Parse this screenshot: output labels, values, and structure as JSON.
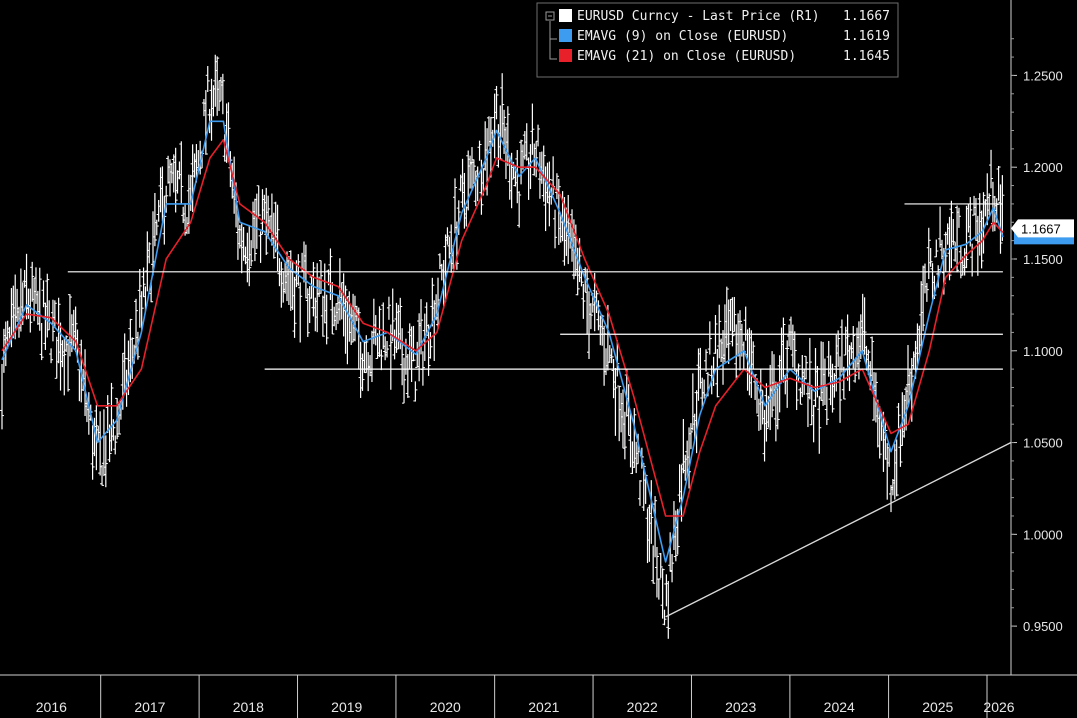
{
  "chart_data": {
    "type": "line",
    "title": "",
    "xlabel": "",
    "ylabel": "",
    "y_axis_side": "right",
    "ylim": [
      0.925,
      1.29
    ],
    "yticks": [
      0.95,
      1.0,
      1.05,
      1.1,
      1.15,
      1.2,
      1.25
    ],
    "ytick_labels": [
      "0.9500",
      "1.0000",
      "1.0500",
      "1.1000",
      "1.1500",
      "1.2000",
      "1.2500"
    ],
    "xlim": [
      "2016-01-01",
      "2026-03-31"
    ],
    "x_year_labels": [
      "2016",
      "2017",
      "2018",
      "2019",
      "2020",
      "2021",
      "2022",
      "2023",
      "2024",
      "2025",
      "2026"
    ],
    "legend": {
      "placement": "top-center",
      "items": [
        {
          "text": "EURUSD Curncy - Last Price (R1)",
          "value": "1.1667",
          "color": "#ffffff"
        },
        {
          "text": "EMAVG (9)  on Close (EURUSD)",
          "value": "1.1619",
          "color": "#3d9cf0"
        },
        {
          "text": "EMAVG (21)  on Close (EURUSD)",
          "value": "1.1645",
          "color": "#e8202a"
        }
      ]
    },
    "last_price_label": "1.1667",
    "series": [
      {
        "name": "EURUSD Curncy - Last Price (R1)",
        "style": "bars",
        "color": "#ffffff",
        "x": [
          "2016-01-01",
          "2016-04-01",
          "2016-07-01",
          "2016-10-01",
          "2016-12-20",
          "2017-03-01",
          "2017-06-01",
          "2017-09-01",
          "2017-12-01",
          "2018-02-10",
          "2018-04-01",
          "2018-06-01",
          "2018-09-01",
          "2018-12-01",
          "2019-03-01",
          "2019-06-01",
          "2019-09-01",
          "2019-12-01",
          "2020-03-15",
          "2020-06-01",
          "2020-09-01",
          "2020-12-01",
          "2021-01-08",
          "2021-04-01",
          "2021-06-01",
          "2021-09-01",
          "2021-12-01",
          "2022-03-01",
          "2022-06-01",
          "2022-09-27",
          "2022-12-01",
          "2023-02-01",
          "2023-04-01",
          "2023-07-15",
          "2023-10-01",
          "2024-01-01",
          "2024-04-01",
          "2024-07-01",
          "2024-09-25",
          "2025-01-10",
          "2025-03-15",
          "2025-06-01",
          "2025-08-01",
          "2025-10-15",
          "2025-12-15",
          "2026-01-25",
          "2026-03-01"
        ],
        "y": [
          1.09,
          1.13,
          1.11,
          1.1,
          1.04,
          1.06,
          1.12,
          1.19,
          1.18,
          1.24,
          1.23,
          1.16,
          1.17,
          1.14,
          1.13,
          1.13,
          1.1,
          1.11,
          1.09,
          1.13,
          1.18,
          1.21,
          1.23,
          1.19,
          1.21,
          1.17,
          1.13,
          1.1,
          1.05,
          0.96,
          1.04,
          1.08,
          1.1,
          1.11,
          1.06,
          1.1,
          1.07,
          1.09,
          1.11,
          1.03,
          1.08,
          1.14,
          1.16,
          1.16,
          1.17,
          1.19,
          1.1667
        ]
      },
      {
        "name": "EMAVG (9)  on Close (EURUSD)",
        "style": "line",
        "color": "#3d9cf0",
        "x": [
          "2016-01-01",
          "2016-04-01",
          "2016-07-01",
          "2016-10-01",
          "2016-12-20",
          "2017-03-01",
          "2017-06-01",
          "2017-09-01",
          "2017-12-01",
          "2018-02-10",
          "2018-04-01",
          "2018-06-01",
          "2018-09-01",
          "2018-12-01",
          "2019-03-01",
          "2019-06-01",
          "2019-09-01",
          "2019-12-01",
          "2020-03-15",
          "2020-06-01",
          "2020-09-01",
          "2020-12-01",
          "2021-01-08",
          "2021-04-01",
          "2021-06-01",
          "2021-09-01",
          "2021-12-01",
          "2022-03-01",
          "2022-06-01",
          "2022-09-27",
          "2022-12-01",
          "2023-02-01",
          "2023-04-01",
          "2023-07-15",
          "2023-10-01",
          "2024-01-01",
          "2024-04-01",
          "2024-07-01",
          "2024-09-25",
          "2025-01-10",
          "2025-03-15",
          "2025-06-01",
          "2025-08-01",
          "2025-10-15",
          "2025-12-15",
          "2026-01-25",
          "2026-03-01"
        ],
        "y": [
          1.095,
          1.125,
          1.115,
          1.1,
          1.05,
          1.062,
          1.11,
          1.18,
          1.18,
          1.225,
          1.225,
          1.17,
          1.165,
          1.145,
          1.135,
          1.13,
          1.105,
          1.11,
          1.098,
          1.12,
          1.175,
          1.205,
          1.22,
          1.195,
          1.205,
          1.175,
          1.14,
          1.11,
          1.06,
          0.985,
          1.02,
          1.065,
          1.09,
          1.1,
          1.07,
          1.09,
          1.078,
          1.085,
          1.1,
          1.045,
          1.07,
          1.12,
          1.155,
          1.158,
          1.165,
          1.178,
          1.1619
        ]
      },
      {
        "name": "EMAVG (21)  on Close (EURUSD)",
        "style": "line",
        "color": "#e8202a",
        "x": [
          "2016-01-01",
          "2016-04-01",
          "2016-07-01",
          "2016-10-01",
          "2016-12-20",
          "2017-03-01",
          "2017-06-01",
          "2017-09-01",
          "2017-12-01",
          "2018-02-10",
          "2018-04-01",
          "2018-06-01",
          "2018-09-01",
          "2018-12-01",
          "2019-03-01",
          "2019-06-01",
          "2019-09-01",
          "2019-12-01",
          "2020-03-15",
          "2020-06-01",
          "2020-09-01",
          "2020-12-01",
          "2021-01-08",
          "2021-04-01",
          "2021-06-01",
          "2021-09-01",
          "2021-12-01",
          "2022-03-01",
          "2022-06-01",
          "2022-09-27",
          "2022-12-01",
          "2023-02-01",
          "2023-04-01",
          "2023-07-15",
          "2023-10-01",
          "2024-01-01",
          "2024-04-01",
          "2024-07-01",
          "2024-09-25",
          "2025-01-10",
          "2025-03-15",
          "2025-06-01",
          "2025-08-01",
          "2025-10-15",
          "2025-12-15",
          "2026-01-25",
          "2026-03-01"
        ],
        "y": [
          1.1,
          1.12,
          1.118,
          1.105,
          1.07,
          1.07,
          1.09,
          1.15,
          1.17,
          1.205,
          1.215,
          1.18,
          1.17,
          1.15,
          1.14,
          1.135,
          1.115,
          1.11,
          1.1,
          1.11,
          1.16,
          1.19,
          1.205,
          1.2,
          1.2,
          1.185,
          1.15,
          1.12,
          1.075,
          1.01,
          1.01,
          1.045,
          1.07,
          1.09,
          1.08,
          1.085,
          1.08,
          1.083,
          1.09,
          1.055,
          1.06,
          1.1,
          1.14,
          1.152,
          1.16,
          1.17,
          1.1645
        ]
      }
    ],
    "annotations": [
      {
        "type": "hline",
        "y": 1.143,
        "from": "2016-09-01",
        "to": "2026-03-01",
        "color": "#ffffff"
      },
      {
        "type": "hline",
        "y": 1.09,
        "from": "2018-09-01",
        "to": "2026-03-01",
        "color": "#ffffff"
      },
      {
        "type": "hline",
        "y": 1.109,
        "from": "2021-09-01",
        "to": "2026-03-01",
        "color": "#ffffff"
      },
      {
        "type": "hline",
        "y": 1.18,
        "from": "2025-03-01",
        "to": "2026-03-01",
        "color": "#ffffff"
      },
      {
        "type": "trendline",
        "x1": "2022-09-27",
        "y1": 0.955,
        "x2": "2026-03-31",
        "y2": 1.05,
        "color": "#d8d8d8"
      }
    ]
  }
}
